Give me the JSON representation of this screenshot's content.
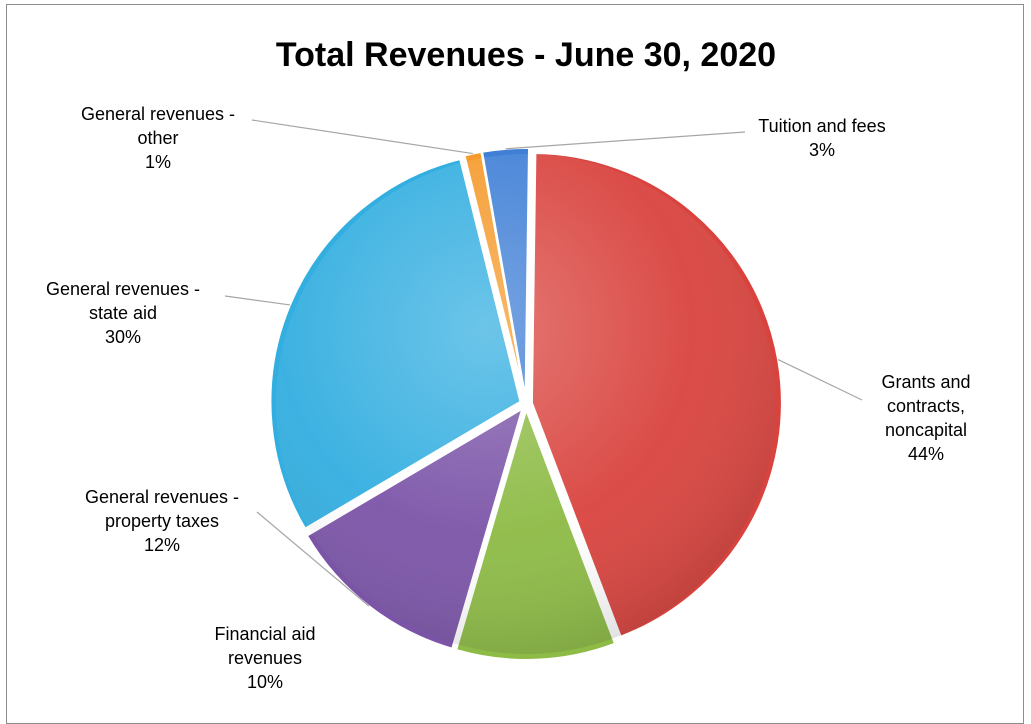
{
  "chart_data": {
    "type": "pie",
    "title": "Total Revenues - June 30, 2020",
    "slices": [
      {
        "label_lines": [
          "Tuition and fees"
        ],
        "percent_label": "3%",
        "value": 3,
        "color": "#3f7fd6"
      },
      {
        "label_lines": [
          "Grants and",
          "contracts,",
          "noncapital"
        ],
        "percent_label": "44%",
        "value": 44,
        "color": "#d9433e"
      },
      {
        "label_lines": [
          "Financial aid",
          "revenues"
        ],
        "percent_label": "10%",
        "value": 10.3,
        "color": "#8dbb45"
      },
      {
        "label_lines": [
          "General revenues -",
          "property taxes"
        ],
        "percent_label": "12%",
        "value": 12,
        "color": "#7b54a8"
      },
      {
        "label_lines": [
          "General revenues -",
          "state aid"
        ],
        "percent_label": "30%",
        "value": 29.6,
        "color": "#33aee0"
      },
      {
        "label_lines": [
          "General revenues -",
          "other"
        ],
        "percent_label": "1%",
        "value": 1.1,
        "color": "#f59a2b"
      }
    ],
    "legend": "none",
    "data_labels": "outside-with-leader-lines"
  }
}
